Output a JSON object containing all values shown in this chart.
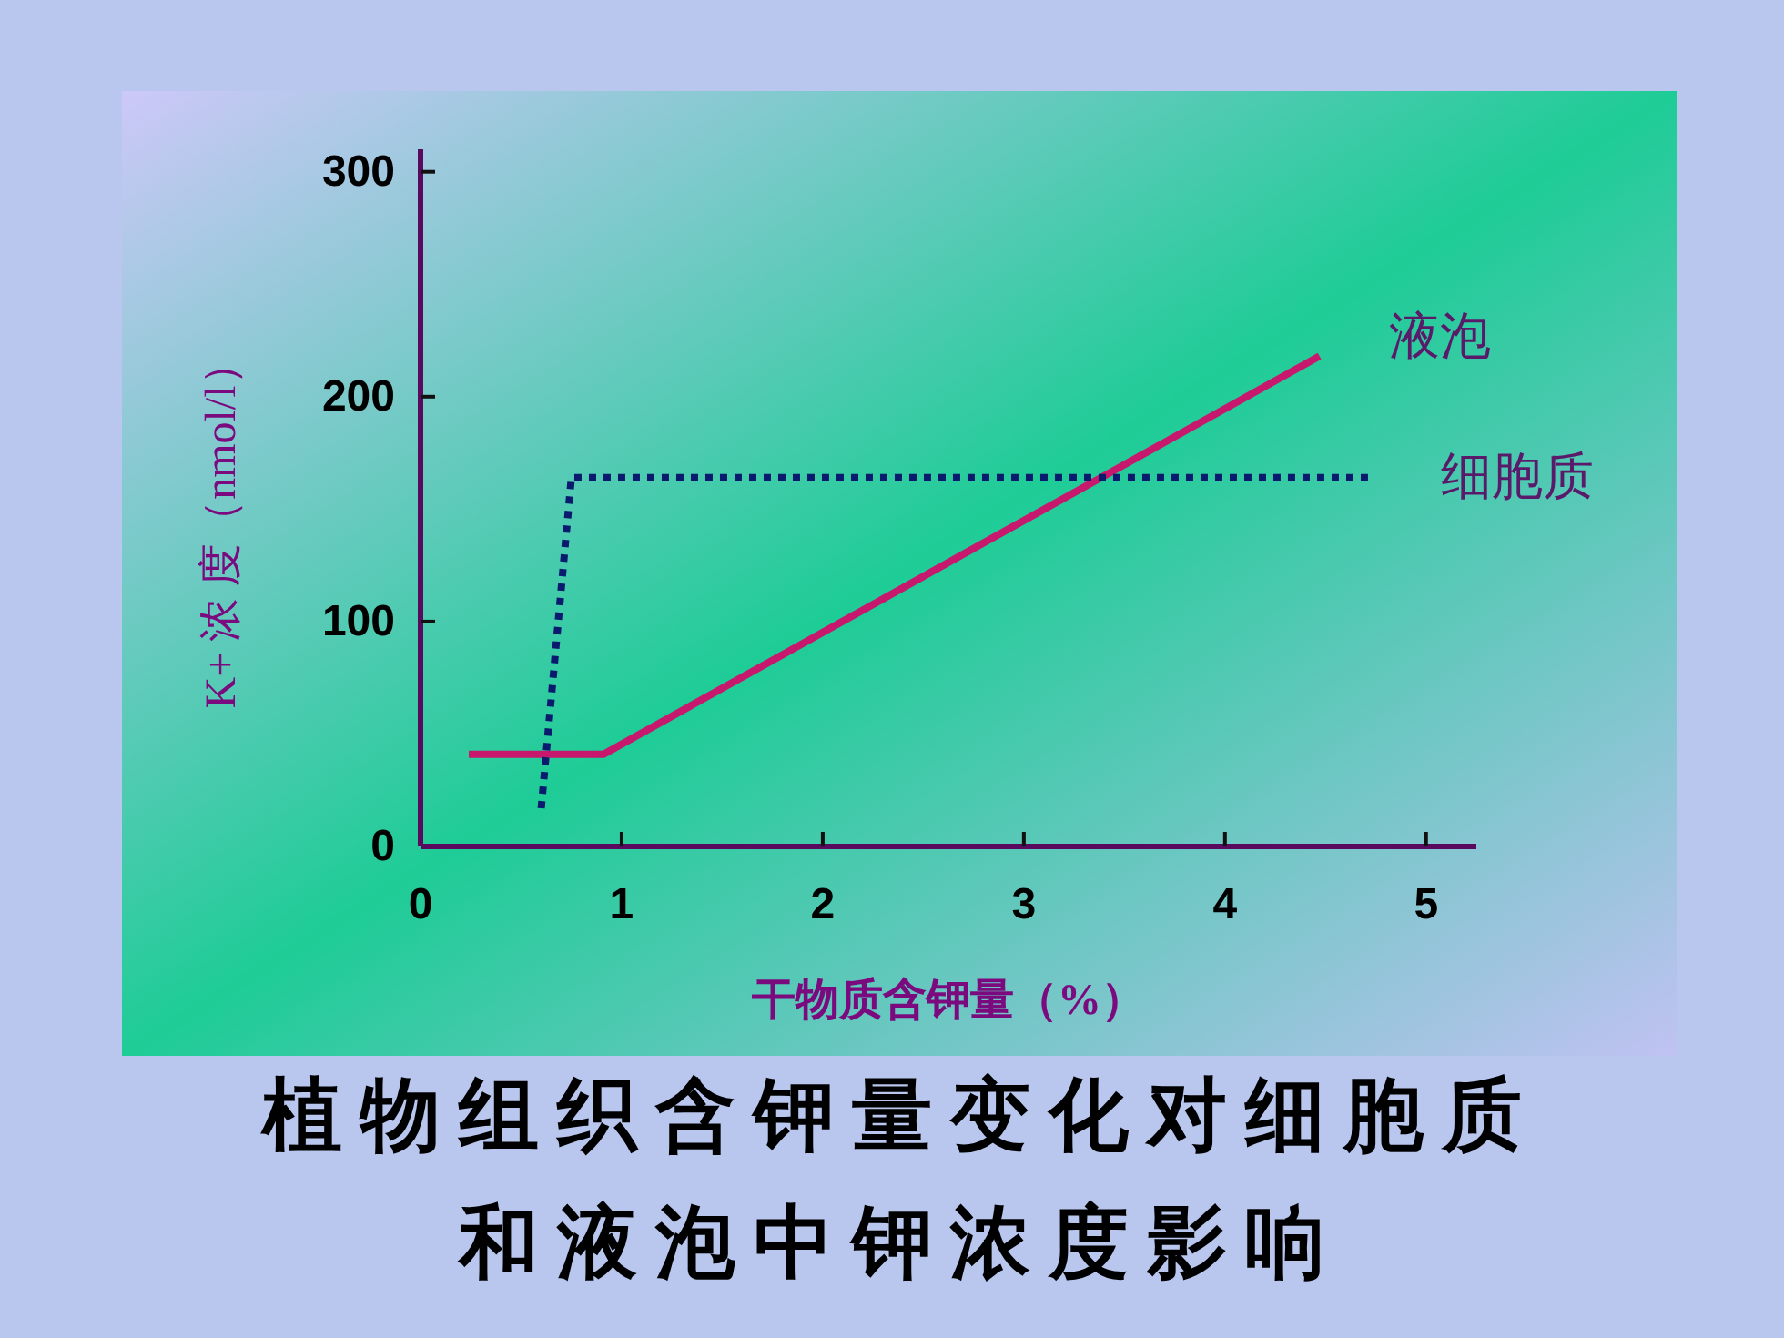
{
  "chart_data": {
    "type": "line",
    "title": "植物组织含钾量变化对细胞质和液泡中钾浓度影响",
    "xlabel": "干物质含钾量（%）",
    "ylabel": "K+ 浓 度（nmol/l）",
    "xlim": [
      0,
      5.25
    ],
    "xticks": [
      0,
      1,
      2,
      3,
      4,
      5
    ],
    "ylim": [
      0,
      310
    ],
    "yticks": [
      0,
      100,
      200,
      300
    ],
    "series": [
      {
        "name": "液泡",
        "color": "#c8186e",
        "line_style": "solid",
        "x": [
          0.24,
          0.91,
          4.47
        ],
        "values": [
          41,
          41,
          218
        ]
      },
      {
        "name": "细胞质",
        "color": "#0a1a6e",
        "line_style": "dotted",
        "x": [
          0.6,
          0.75,
          4.73
        ],
        "values": [
          17,
          164,
          164
        ]
      }
    ]
  }
}
